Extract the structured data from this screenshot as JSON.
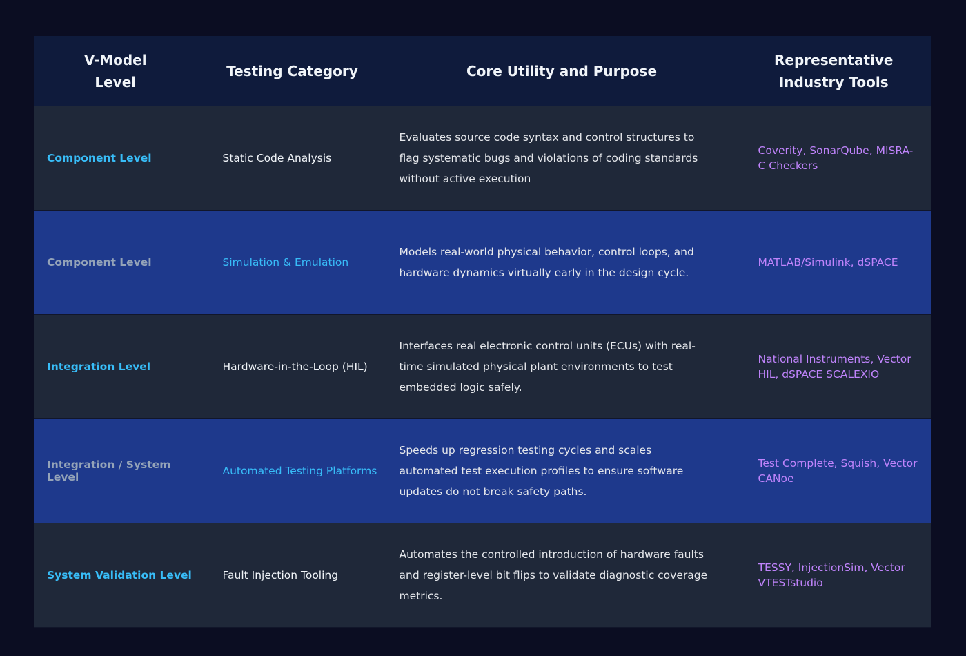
{
  "header": {
    "columns": [
      "V-Model Level",
      "Testing Category",
      "Core Utility and Purpose",
      "Representative Industry Tools"
    ]
  },
  "table": {
    "rows": [
      [
        "Component Level",
        "Static Code Analysis",
        "Evaluates source code syntax and control structures to flag systematic bugs and violations of coding standards without active execution",
        "Coverity, SonarQube, MISRA-C Checkers"
      ],
      [
        "Component Level",
        "Simulation & Emulation",
        "Models real-world physical behavior, control loops, and hardware dynamics virtually early in the design cycle.",
        "MATLAB/Simulink, dSPACE"
      ],
      [
        "Integration Level",
        "Hardware-in-the-Loop (HIL)",
        "Interfaces real electronic control units (ECUs) with real-time simulated physical plant environments to test embedded logic safely.",
        "National Instruments, Vector HIL, dSPACE SCALEXIO"
      ],
      [
        "Integration / System Level",
        "Automated Testing Platforms",
        "Speeds up regression testing cycles and scales automated test execution profiles to ensure software updates do not break safety paths.",
        "Test Complete, Squish, Vector CANoe"
      ],
      [
        "System Validation Level",
        "Fault Injection Tooling",
        "Automates the controlled introduction of hardware faults and register-level bit flips to validate diagnostic coverage metrics.",
        "TESSY, InjectionSim, Vector VTESTstudio"
      ]
    ]
  }
}
